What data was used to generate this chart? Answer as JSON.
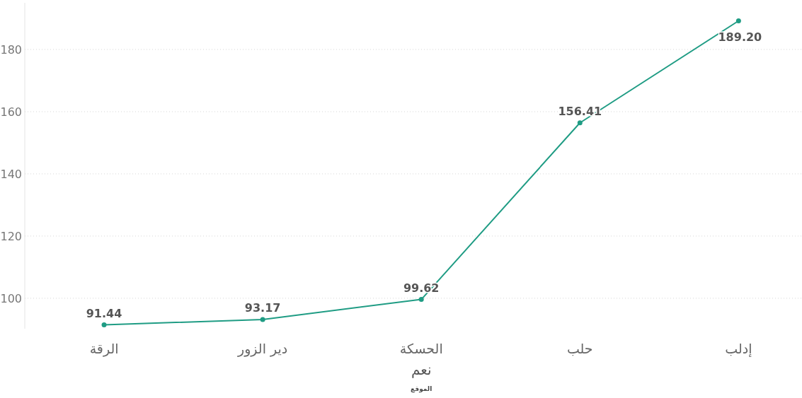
{
  "chart_data": {
    "type": "line",
    "categories": [
      "الرقة",
      "دير الزور",
      "الحسكة",
      "حلب",
      "إدلب"
    ],
    "values": [
      91.44,
      93.17,
      99.62,
      156.41,
      189.2
    ],
    "value_labels": [
      "91.44",
      "93.17",
      "99.62",
      "156.41",
      "189.20"
    ],
    "color": "#1f9c84",
    "ylim": [
      90.2,
      195
    ],
    "yticks": [
      100,
      120,
      140,
      160,
      180
    ],
    "grid": "y",
    "marker": "circle",
    "xlabel": "نعم",
    "annotations": [
      "الموقع"
    ]
  }
}
